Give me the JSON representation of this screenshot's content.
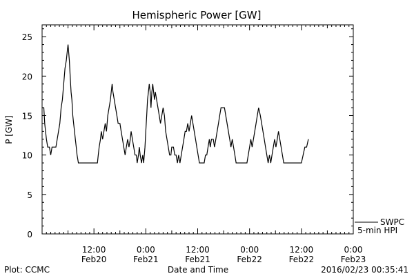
{
  "chart_data": {
    "type": "line",
    "title": "Hemispheric Power [GW]",
    "ylabel": "P [GW]",
    "xlabel": "Date and Time",
    "ylim": [
      0,
      26.5
    ],
    "xlim": [
      0,
      72
    ],
    "yticks": [
      0,
      5,
      10,
      15,
      20,
      25
    ],
    "xticks": [
      {
        "x": 12,
        "time": "12:00",
        "date": "Feb20"
      },
      {
        "x": 24,
        "time": "0:00",
        "date": "Feb21"
      },
      {
        "x": 36,
        "time": "12:00",
        "date": "Feb21"
      },
      {
        "x": 48,
        "time": "0:00",
        "date": "Feb22"
      },
      {
        "x": 60,
        "time": "12:00",
        "date": "Feb22"
      },
      {
        "x": 72,
        "time": "0:00",
        "date": "Feb23"
      }
    ],
    "x_note": "x = hours since 0:00 Feb20",
    "legend": {
      "line1": "SWPC",
      "line2": "5-min HPI",
      "placement": "bottom-right"
    },
    "footer": {
      "left": "Plot: CCMC",
      "right": "2016/02/23 00:35:41"
    },
    "series": [
      {
        "name": "5-min HPI",
        "points": [
          [
            0.0,
            16
          ],
          [
            0.4,
            16
          ],
          [
            0.6,
            14
          ],
          [
            0.8,
            13
          ],
          [
            1.0,
            12
          ],
          [
            1.3,
            11
          ],
          [
            1.7,
            11
          ],
          [
            2.0,
            10
          ],
          [
            2.3,
            11
          ],
          [
            3.2,
            11
          ],
          [
            3.5,
            12
          ],
          [
            3.8,
            13
          ],
          [
            4.1,
            14
          ],
          [
            4.4,
            16
          ],
          [
            4.7,
            17
          ],
          [
            5.0,
            19
          ],
          [
            5.3,
            21
          ],
          [
            5.6,
            22
          ],
          [
            5.8,
            23
          ],
          [
            6.0,
            24
          ],
          [
            6.3,
            22
          ],
          [
            6.5,
            20
          ],
          [
            6.7,
            18
          ],
          [
            6.9,
            17
          ],
          [
            7.1,
            15
          ],
          [
            7.3,
            14
          ],
          [
            7.5,
            13
          ],
          [
            7.7,
            12
          ],
          [
            7.9,
            11
          ],
          [
            8.1,
            10
          ],
          [
            8.4,
            9
          ],
          [
            12.8,
            9
          ],
          [
            13.0,
            10
          ],
          [
            13.2,
            11
          ],
          [
            13.5,
            12
          ],
          [
            13.7,
            13
          ],
          [
            14.0,
            12
          ],
          [
            14.3,
            13
          ],
          [
            14.6,
            14
          ],
          [
            14.9,
            13
          ],
          [
            15.2,
            15
          ],
          [
            15.5,
            16
          ],
          [
            15.8,
            17
          ],
          [
            16.0,
            18
          ],
          [
            16.2,
            19
          ],
          [
            16.4,
            18
          ],
          [
            16.7,
            17
          ],
          [
            17.0,
            16
          ],
          [
            17.3,
            15
          ],
          [
            17.6,
            14
          ],
          [
            18.0,
            14
          ],
          [
            18.3,
            13
          ],
          [
            18.6,
            12
          ],
          [
            18.9,
            11
          ],
          [
            19.2,
            10
          ],
          [
            19.5,
            11
          ],
          [
            19.8,
            12
          ],
          [
            20.1,
            11
          ],
          [
            20.4,
            12
          ],
          [
            20.6,
            13
          ],
          [
            20.9,
            12
          ],
          [
            21.2,
            11
          ],
          [
            21.5,
            10
          ],
          [
            21.8,
            10
          ],
          [
            22.0,
            9
          ],
          [
            22.3,
            10
          ],
          [
            22.5,
            11
          ],
          [
            22.7,
            10
          ],
          [
            23.0,
            9
          ],
          [
            23.3,
            10
          ],
          [
            23.5,
            9
          ],
          [
            23.8,
            11
          ],
          [
            24.0,
            13
          ],
          [
            24.2,
            15
          ],
          [
            24.4,
            17
          ],
          [
            24.6,
            18
          ],
          [
            24.8,
            19
          ],
          [
            25.0,
            18
          ],
          [
            25.2,
            16
          ],
          [
            25.4,
            18
          ],
          [
            25.6,
            19
          ],
          [
            25.8,
            18
          ],
          [
            26.0,
            17
          ],
          [
            26.2,
            18
          ],
          [
            26.5,
            17
          ],
          [
            26.8,
            16
          ],
          [
            27.1,
            15
          ],
          [
            27.4,
            14
          ],
          [
            27.7,
            15
          ],
          [
            28.0,
            16
          ],
          [
            28.3,
            15
          ],
          [
            28.6,
            13
          ],
          [
            28.9,
            12
          ],
          [
            29.2,
            11
          ],
          [
            29.5,
            10
          ],
          [
            29.8,
            10
          ],
          [
            30.0,
            11
          ],
          [
            30.4,
            11
          ],
          [
            30.7,
            10
          ],
          [
            31.0,
            10
          ],
          [
            31.3,
            9
          ],
          [
            31.6,
            10
          ],
          [
            31.9,
            9
          ],
          [
            32.2,
            10
          ],
          [
            32.5,
            11
          ],
          [
            32.8,
            12
          ],
          [
            33.1,
            13
          ],
          [
            33.4,
            13
          ],
          [
            33.7,
            14
          ],
          [
            34.0,
            13
          ],
          [
            34.3,
            14
          ],
          [
            34.6,
            15
          ],
          [
            34.9,
            14
          ],
          [
            35.2,
            13
          ],
          [
            35.5,
            12
          ],
          [
            35.8,
            11
          ],
          [
            36.1,
            10
          ],
          [
            36.4,
            9
          ],
          [
            37.5,
            9
          ],
          [
            37.8,
            10
          ],
          [
            38.1,
            10
          ],
          [
            38.4,
            11
          ],
          [
            38.7,
            12
          ],
          [
            38.9,
            11
          ],
          [
            39.2,
            12
          ],
          [
            39.6,
            12
          ],
          [
            39.9,
            11
          ],
          [
            40.2,
            12
          ],
          [
            40.5,
            13
          ],
          [
            40.8,
            14
          ],
          [
            41.1,
            15
          ],
          [
            41.4,
            16
          ],
          [
            42.2,
            16
          ],
          [
            42.5,
            15
          ],
          [
            42.8,
            14
          ],
          [
            43.1,
            13
          ],
          [
            43.4,
            12
          ],
          [
            43.7,
            11
          ],
          [
            44.0,
            12
          ],
          [
            44.3,
            11
          ],
          [
            44.6,
            10
          ],
          [
            44.9,
            9
          ],
          [
            47.4,
            9
          ],
          [
            47.7,
            10
          ],
          [
            48.0,
            11
          ],
          [
            48.3,
            12
          ],
          [
            48.6,
            11
          ],
          [
            48.9,
            12
          ],
          [
            49.2,
            13
          ],
          [
            49.5,
            14
          ],
          [
            49.8,
            15
          ],
          [
            50.1,
            16
          ],
          [
            50.5,
            15
          ],
          [
            50.8,
            14
          ],
          [
            51.1,
            13
          ],
          [
            51.4,
            12
          ],
          [
            51.7,
            11
          ],
          [
            52.0,
            10
          ],
          [
            52.3,
            9
          ],
          [
            52.6,
            10
          ],
          [
            52.9,
            9
          ],
          [
            53.2,
            10
          ],
          [
            53.5,
            11
          ],
          [
            53.8,
            12
          ],
          [
            54.1,
            11
          ],
          [
            54.4,
            12
          ],
          [
            54.7,
            13
          ],
          [
            55.0,
            12
          ],
          [
            55.3,
            11
          ],
          [
            55.6,
            10
          ],
          [
            55.9,
            9
          ],
          [
            60.0,
            9
          ],
          [
            60.4,
            10
          ],
          [
            60.8,
            11
          ],
          [
            61.2,
            11
          ],
          [
            61.6,
            12
          ]
        ]
      }
    ]
  }
}
